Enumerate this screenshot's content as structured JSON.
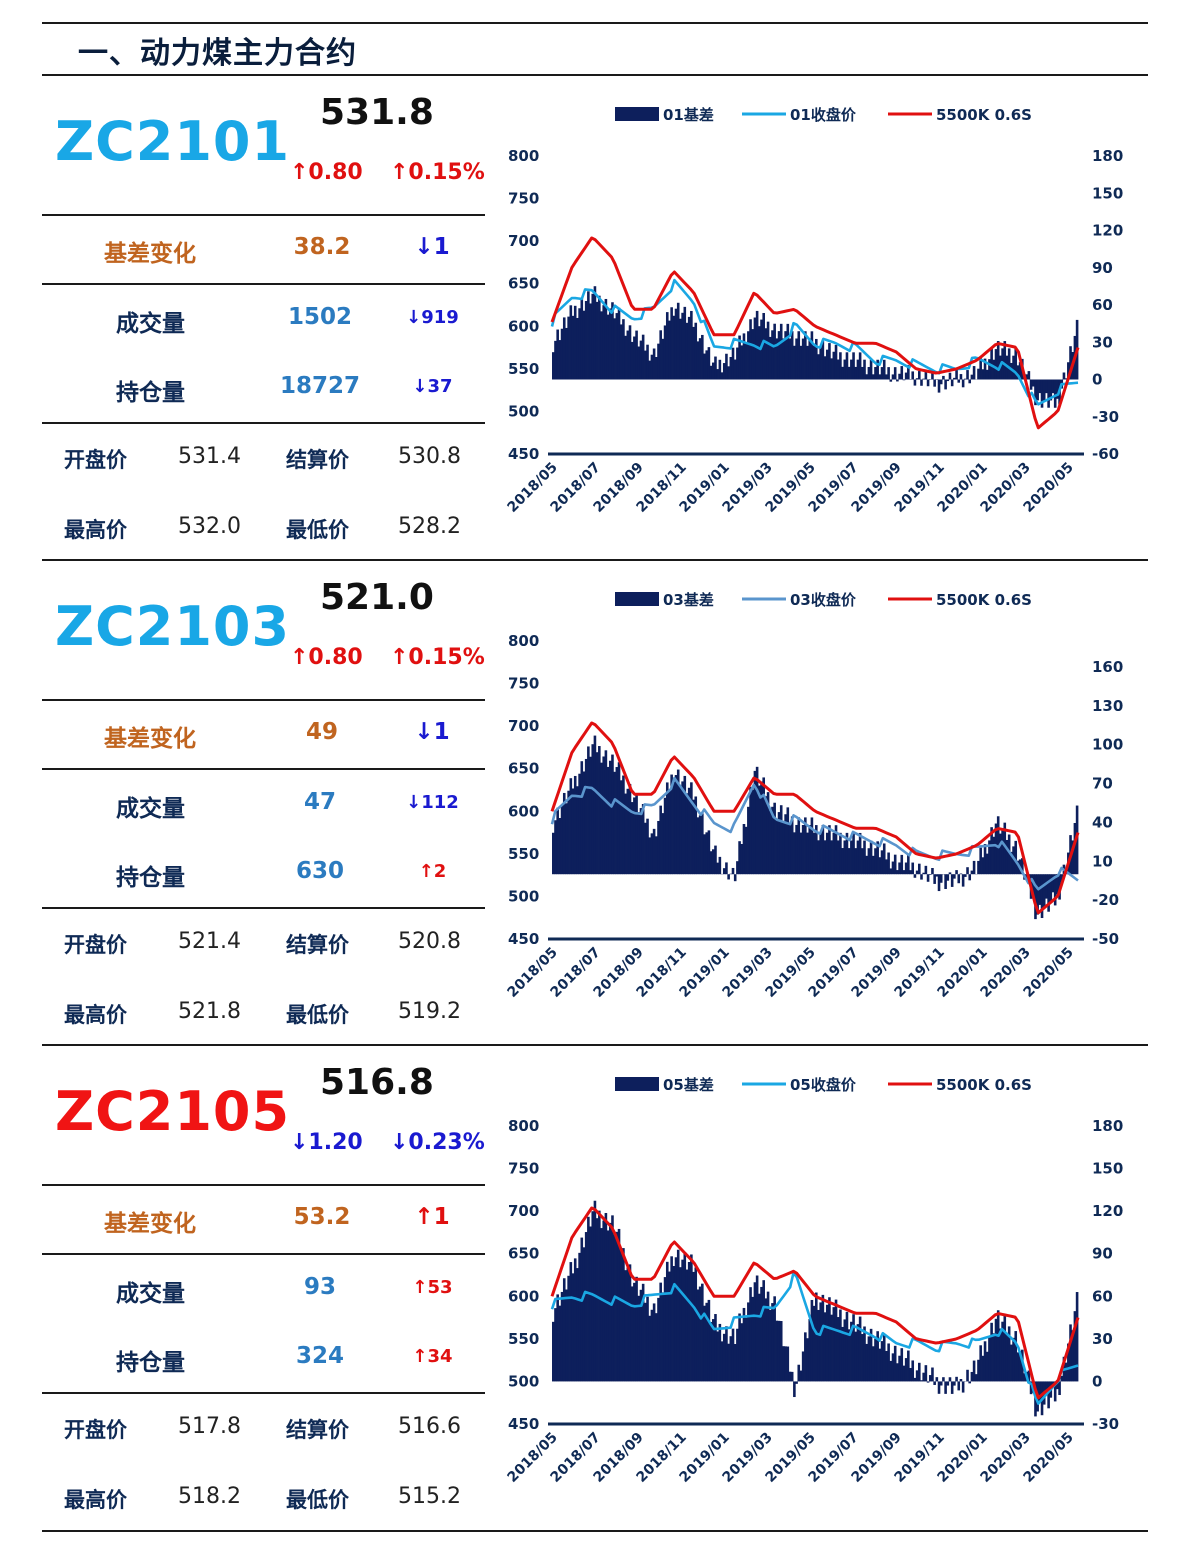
{
  "page_title": "一、动力煤主力合约",
  "labels": {
    "basis_change": "基差变化",
    "volume": "成交量",
    "open_interest": "持仓量",
    "open": "开盘价",
    "settle": "结算价",
    "high": "最高价",
    "low": "最低价"
  },
  "colors": {
    "navy": "#0f2a55",
    "bar": "#0d1f5c",
    "sky": "#1aa7e3",
    "steel": "#5a95cd",
    "red": "#e01010",
    "orange": "#c0641f"
  },
  "contracts": [
    {
      "code": "ZC2101",
      "code_color": "#19a7e6",
      "price": "531.8",
      "change": "↑0.80",
      "change_pct": "↑0.15%",
      "change_dir": "up",
      "basis": "38.2",
      "basis_delta": "↓1",
      "basis_dir": "down",
      "volume": "1502",
      "volume_delta": "↓919",
      "volume_dir": "down",
      "oi": "18727",
      "oi_delta": "↓37",
      "oi_dir": "down",
      "open": "531.4",
      "settle": "530.8",
      "high": "532.0",
      "low": "528.2"
    },
    {
      "code": "ZC2103",
      "code_color": "#19a7e6",
      "price": "521.0",
      "change": "↑0.80",
      "change_pct": "↑0.15%",
      "change_dir": "up",
      "basis": "49",
      "basis_delta": "↓1",
      "basis_dir": "down",
      "volume": "47",
      "volume_delta": "↓112",
      "volume_dir": "down",
      "oi": "630",
      "oi_delta": "↑2",
      "oi_dir": "up",
      "open": "521.4",
      "settle": "520.8",
      "high": "521.8",
      "low": "519.2"
    },
    {
      "code": "ZC2105",
      "code_color": "#f01414",
      "price": "516.8",
      "change": "↓1.20",
      "change_pct": "↓0.23%",
      "change_dir": "down",
      "basis": "53.2",
      "basis_delta": "↑1",
      "basis_dir": "up",
      "volume": "93",
      "volume_delta": "↑53",
      "volume_dir": "up",
      "oi": "324",
      "oi_delta": "↑34",
      "oi_dir": "up",
      "open": "517.8",
      "settle": "516.6",
      "high": "518.2",
      "low": "515.2"
    }
  ],
  "chart_data": [
    {
      "type": "bar+line",
      "legend": [
        "01基差",
        "01收盘价",
        "5500K 0.6S"
      ],
      "left_axis": {
        "ticks": [
          800,
          750,
          700,
          650,
          600,
          550,
          500,
          450
        ],
        "range": [
          450,
          800
        ]
      },
      "right_axis": {
        "ticks": [
          180,
          150,
          120,
          90,
          60,
          30,
          0,
          -30,
          -60
        ],
        "range": [
          -60,
          180
        ]
      },
      "x_ticks": [
        "2018/05",
        "2018/07",
        "2018/09",
        "2018/11",
        "2019/01",
        "2019/03",
        "2019/05",
        "2019/07",
        "2019/09",
        "2019/11",
        "2020/01",
        "2020/03",
        "2020/05"
      ],
      "x": [
        "2018/05",
        "2018/06",
        "2018/07",
        "2018/08",
        "2018/09",
        "2018/10",
        "2018/11",
        "2018/12",
        "2019/01",
        "2019/02",
        "2019/03",
        "2019/04",
        "2019/05",
        "2019/06",
        "2019/07",
        "2019/08",
        "2019/09",
        "2019/10",
        "2019/11",
        "2019/12",
        "2020/01",
        "2020/02",
        "2020/03",
        "2020/04",
        "2020/05",
        "2020/06",
        "2020/07"
      ],
      "series": [
        {
          "name": "01基差",
          "axis": "right",
          "kind": "bar",
          "values": [
            30,
            55,
            68,
            55,
            35,
            20,
            60,
            45,
            10,
            20,
            50,
            40,
            35,
            30,
            20,
            15,
            10,
            5,
            3,
            -3,
            0,
            5,
            25,
            20,
            -15,
            -20,
            40
          ]
        },
        {
          "name": "01收盘价",
          "axis": "left",
          "kind": "line",
          "values": [
            605,
            635,
            640,
            620,
            610,
            620,
            650,
            630,
            575,
            580,
            580,
            575,
            600,
            580,
            580,
            575,
            560,
            560,
            555,
            550,
            550,
            560,
            555,
            545,
            505,
            525,
            535
          ]
        },
        {
          "name": "5500K 0.6S",
          "axis": "left",
          "kind": "line",
          "values": [
            605,
            670,
            705,
            680,
            620,
            620,
            665,
            640,
            590,
            590,
            640,
            615,
            620,
            600,
            590,
            580,
            580,
            570,
            550,
            545,
            550,
            560,
            580,
            575,
            480,
            500,
            575
          ]
        }
      ]
    },
    {
      "type": "bar+line",
      "legend": [
        "03基差",
        "03收盘价",
        "5500K 0.6S"
      ],
      "left_axis": {
        "ticks": [
          800,
          750,
          700,
          650,
          600,
          550,
          500,
          450
        ],
        "range": [
          450,
          800
        ]
      },
      "right_axis": {
        "ticks": [
          160,
          130,
          100,
          70,
          40,
          10,
          -20,
          -50
        ],
        "range": [
          -50,
          180
        ]
      },
      "x_ticks": [
        "2018/05",
        "2018/07",
        "2018/09",
        "2018/11",
        "2019/01",
        "2019/03",
        "2019/05",
        "2019/07",
        "2019/09",
        "2019/11",
        "2020/01",
        "2020/03",
        "2020/05"
      ],
      "x": [
        "2018/05",
        "2018/06",
        "2018/07",
        "2018/08",
        "2018/09",
        "2018/10",
        "2018/11",
        "2018/12",
        "2019/01",
        "2019/02",
        "2019/03",
        "2019/04",
        "2019/05",
        "2019/06",
        "2019/07",
        "2019/08",
        "2019/09",
        "2019/10",
        "2019/11",
        "2019/12",
        "2020/01",
        "2020/02",
        "2020/03",
        "2020/04",
        "2020/05",
        "2020/06",
        "2020/07"
      ],
      "series": [
        {
          "name": "03基差",
          "axis": "right",
          "kind": "bar",
          "values": [
            40,
            70,
            100,
            85,
            60,
            30,
            80,
            60,
            15,
            -3,
            80,
            50,
            40,
            35,
            30,
            25,
            20,
            10,
            5,
            -5,
            -5,
            5,
            40,
            20,
            -30,
            -20,
            45
          ]
        },
        {
          "name": "03收盘价",
          "axis": "left",
          "kind": "line",
          "values": [
            590,
            620,
            625,
            610,
            600,
            605,
            635,
            610,
            585,
            580,
            635,
            590,
            590,
            580,
            575,
            570,
            565,
            560,
            550,
            548,
            550,
            555,
            565,
            540,
            505,
            530,
            520
          ]
        },
        {
          "name": "5500K 0.6S",
          "axis": "left",
          "kind": "line",
          "values": [
            600,
            670,
            705,
            680,
            620,
            620,
            665,
            640,
            600,
            600,
            640,
            620,
            620,
            600,
            590,
            580,
            580,
            570,
            550,
            545,
            550,
            560,
            580,
            575,
            480,
            500,
            575
          ]
        }
      ]
    },
    {
      "type": "bar+line",
      "legend": [
        "05基差",
        "05收盘价",
        "5500K 0.6S"
      ],
      "left_axis": {
        "ticks": [
          800,
          750,
          700,
          650,
          600,
          550,
          500,
          450
        ],
        "range": [
          450,
          800
        ]
      },
      "right_axis": {
        "ticks": [
          180,
          150,
          120,
          90,
          60,
          30,
          0,
          -30
        ],
        "range": [
          -30,
          180
        ]
      },
      "x_ticks": [
        "2018/05",
        "2018/07",
        "2018/09",
        "2018/11",
        "2019/01",
        "2019/03",
        "2019/05",
        "2019/07",
        "2019/09",
        "2019/11",
        "2020/01",
        "2020/03",
        "2020/05"
      ],
      "x": [
        "2018/05",
        "2018/06",
        "2018/07",
        "2018/08",
        "2018/09",
        "2018/10",
        "2018/11",
        "2018/12",
        "2019/01",
        "2019/02",
        "2019/03",
        "2019/04",
        "2019/05",
        "2019/06",
        "2019/07",
        "2019/08",
        "2019/09",
        "2019/10",
        "2019/11",
        "2019/12",
        "2020/01",
        "2020/02",
        "2020/03",
        "2020/04",
        "2020/05",
        "2020/06",
        "2020/07"
      ],
      "series": [
        {
          "name": "05基差",
          "axis": "right",
          "kind": "bar",
          "values": [
            50,
            80,
            120,
            110,
            70,
            50,
            90,
            80,
            40,
            30,
            70,
            55,
            -5,
            60,
            50,
            40,
            30,
            20,
            10,
            0,
            -5,
            10,
            45,
            30,
            -20,
            -10,
            55
          ]
        },
        {
          "name": "05收盘价",
          "axis": "left",
          "kind": "line",
          "values": [
            590,
            600,
            600,
            595,
            590,
            600,
            610,
            590,
            560,
            570,
            580,
            585,
            625,
            560,
            560,
            560,
            555,
            545,
            545,
            540,
            545,
            545,
            560,
            545,
            470,
            505,
            520
          ]
        },
        {
          "name": "5500K 0.6S",
          "axis": "left",
          "kind": "line",
          "values": [
            600,
            670,
            705,
            680,
            620,
            620,
            665,
            640,
            600,
            600,
            640,
            620,
            630,
            600,
            590,
            580,
            580,
            570,
            550,
            545,
            550,
            560,
            580,
            575,
            480,
            500,
            575
          ]
        }
      ]
    }
  ]
}
